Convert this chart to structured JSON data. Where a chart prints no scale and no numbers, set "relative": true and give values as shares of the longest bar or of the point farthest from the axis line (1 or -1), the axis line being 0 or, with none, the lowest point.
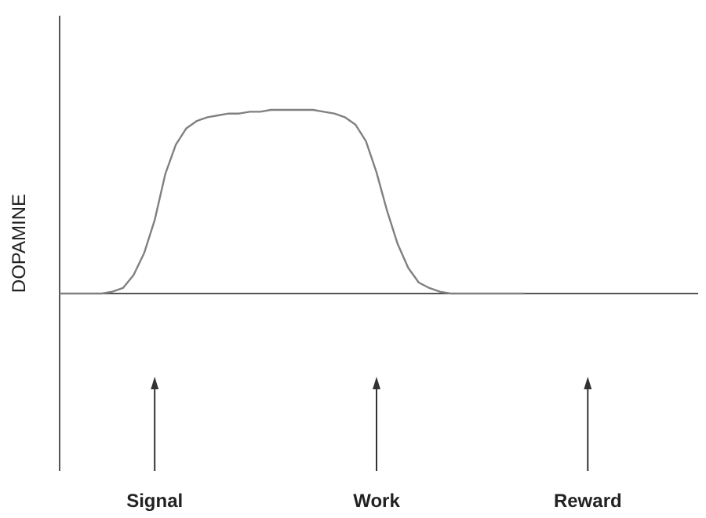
{
  "chart_data": {
    "type": "line",
    "relative": true,
    "ylabel": "DOPAMINE",
    "categories": [
      null,
      null,
      null,
      null,
      null,
      null,
      null,
      null,
      null,
      "Signal",
      null,
      null,
      null,
      null,
      null,
      null,
      null,
      null,
      null,
      null,
      null,
      null,
      null,
      null,
      null,
      null,
      null,
      null,
      null,
      null,
      "Work",
      null,
      null,
      null,
      null,
      null,
      null,
      null,
      null,
      null,
      null,
      null,
      null,
      null,
      null,
      null,
      null,
      null,
      null,
      null,
      "Reward",
      null,
      null,
      null,
      null,
      null,
      null,
      null,
      null,
      null
    ],
    "series": [
      {
        "color": "#808080",
        "values": [
          0,
          0,
          0,
          0,
          0,
          0.01,
          0.03,
          0.1,
          0.22,
          0.4,
          0.65,
          0.81,
          0.9,
          0.94,
          0.96,
          0.97,
          0.98,
          0.98,
          0.99,
          0.99,
          1.0,
          1.0,
          1.0,
          1.0,
          1.0,
          0.99,
          0.98,
          0.96,
          0.92,
          0.83,
          0.66,
          0.45,
          0.27,
          0.14,
          0.06,
          0.03,
          0.01,
          0,
          0,
          0,
          0,
          0,
          0,
          0,
          0,
          null,
          null,
          null,
          null,
          null,
          null,
          null,
          null,
          null,
          null,
          null,
          null,
          null,
          null,
          null
        ]
      }
    ],
    "marker": "none",
    "line_style": "solid"
  }
}
